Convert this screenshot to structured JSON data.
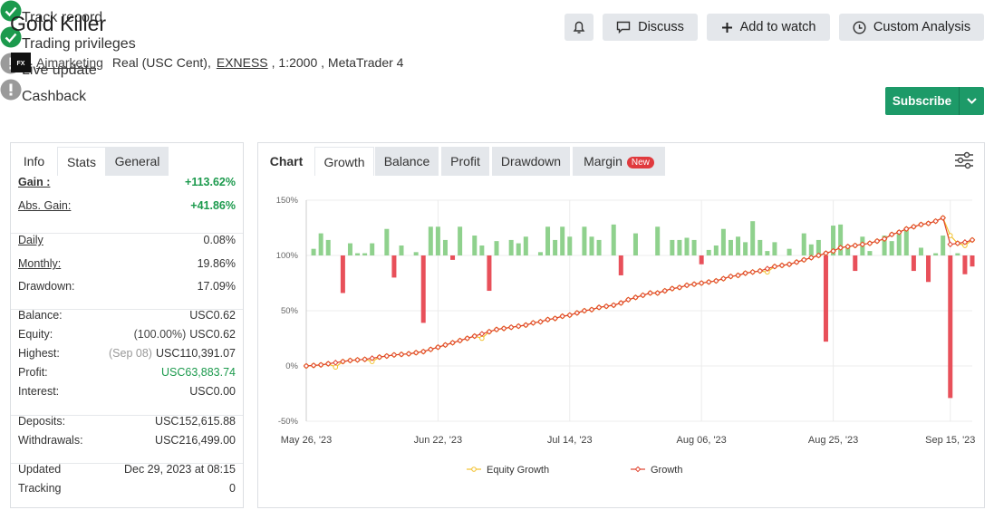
{
  "header": {
    "title": "Gold Killer",
    "buttons": [
      "Discuss",
      "Add to watch",
      "Custom Analysis"
    ],
    "account": {
      "owner": "Aimarketing",
      "type": "Real (USC Cent),",
      "broker": "EXNESS",
      "details": ", 1:2000 , MetaTrader 4"
    },
    "badges": [
      {
        "label": "Track record",
        "status": "ok"
      },
      {
        "label": "Trading privileges",
        "status": "ok"
      },
      {
        "label": "Live update",
        "status": "warn"
      },
      {
        "label": "Cashback",
        "status": "warn"
      }
    ],
    "subscribe": "Subscribe"
  },
  "stats": {
    "tabs": [
      "Info",
      "Stats",
      "General"
    ],
    "groups": [
      [
        {
          "label": "Gain :",
          "value": "+113.62%",
          "positive": true,
          "underline": true,
          "bold": true
        },
        {
          "label": "Abs. Gain:",
          "value": "+41.86%",
          "positive": true,
          "underline": true
        }
      ],
      [
        {
          "label": "Daily",
          "value": "0.08%",
          "underline": true
        },
        {
          "label": "Monthly:",
          "value": "19.86%",
          "underline": true
        },
        {
          "label": "Drawdown:",
          "value": "17.09%"
        }
      ],
      [
        {
          "label": "Balance:",
          "value": "USC0.62"
        },
        {
          "label": "Equity:",
          "note": "(100.00%)",
          "value": "USC0.62"
        },
        {
          "label": "Highest:",
          "note": "(Sep 08)",
          "value": "USC110,391.07",
          "muted_note": true
        },
        {
          "label": "Profit:",
          "value": "USC63,883.74",
          "positive": true
        },
        {
          "label": "Interest:",
          "value": "USC0.00"
        }
      ],
      [
        {
          "label": "Deposits:",
          "value": "USC152,615.88"
        },
        {
          "label": "Withdrawals:",
          "value": "USC216,499.00"
        }
      ],
      [
        {
          "label": "Updated",
          "value": "Dec 29, 2023 at 08:15"
        },
        {
          "label": "Tracking",
          "value": "0"
        }
      ]
    ]
  },
  "chart_panel": {
    "tabs": [
      "Chart",
      "Growth",
      "Balance",
      "Profit",
      "Drawdown",
      "Margin"
    ],
    "badge": "New"
  },
  "chart_data": {
    "type": "line",
    "categories": [
      "May 26, '23",
      null,
      null,
      null,
      null,
      null,
      null,
      null,
      null,
      null,
      null,
      null,
      null,
      null,
      null,
      null,
      null,
      null,
      "Jun 22, '23",
      null,
      null,
      null,
      null,
      null,
      null,
      null,
      null,
      null,
      null,
      null,
      null,
      null,
      null,
      null,
      null,
      null,
      "Jul 14, '23",
      null,
      null,
      null,
      null,
      null,
      null,
      null,
      null,
      null,
      null,
      null,
      null,
      null,
      null,
      null,
      null,
      null,
      "Aug 06, '23",
      null,
      null,
      null,
      null,
      null,
      null,
      null,
      null,
      null,
      null,
      null,
      null,
      null,
      null,
      null,
      null,
      null,
      "Aug 25, '23",
      null,
      null,
      null,
      null,
      null,
      null,
      null,
      null,
      null,
      null,
      null,
      null,
      null,
      null,
      null,
      "Sep 15, '23",
      null,
      null,
      null
    ],
    "ylim": [
      -50,
      150
    ],
    "yticks": [
      {
        "value": -50,
        "label": "-50%"
      },
      {
        "value": 0,
        "label": "0%"
      },
      {
        "value": 50,
        "label": "50%"
      },
      {
        "value": 100,
        "label": "100%"
      },
      {
        "value": 150,
        "label": "150%"
      }
    ],
    "y2lim": [
      -150,
      50
    ],
    "grid": true,
    "legend": "bottom",
    "series": [
      {
        "type": "bar",
        "axis": "y2",
        "color": "#8fd18d",
        "negative_color": "#e8505a",
        "values": [
          0,
          6,
          20,
          14,
          0,
          -34,
          11,
          2,
          2,
          11,
          0,
          24,
          -20,
          9,
          0,
          3,
          -61,
          26,
          26,
          14,
          -4,
          26,
          0,
          18,
          9,
          -32,
          13,
          0,
          14,
          11,
          17,
          0,
          3,
          26,
          14,
          26,
          17,
          0,
          26,
          17,
          14,
          0,
          28,
          -18,
          0,
          20,
          0,
          0,
          26,
          0,
          14,
          14,
          16,
          14,
          -8,
          5,
          9,
          24,
          14,
          17,
          12,
          31,
          14,
          4,
          12,
          0,
          6,
          0,
          20,
          10,
          14,
          -78,
          27,
          28,
          8,
          -14,
          17,
          4,
          0,
          18,
          13,
          20,
          25,
          -14,
          7,
          -24,
          2,
          18,
          -129,
          2,
          -17,
          -10
        ]
      },
      {
        "type": "line",
        "name": "Equity Growth",
        "color": "#f2c12e",
        "marker": "circle",
        "values": [
          0,
          0.5,
          1,
          2,
          -1,
          4,
          5,
          5.5,
          6,
          4,
          8,
          9,
          10,
          10.5,
          11,
          12,
          13,
          15,
          17,
          19,
          21,
          23,
          25,
          27,
          25,
          31,
          33,
          34,
          35,
          36,
          37,
          39,
          40,
          42,
          43,
          45,
          46,
          48,
          50,
          51,
          53,
          54,
          55,
          57,
          60,
          62,
          64,
          66,
          66,
          68,
          70,
          71,
          73,
          74,
          75,
          76,
          77,
          79,
          81,
          82,
          84,
          85,
          86,
          85,
          90,
          91,
          92,
          94,
          96,
          98,
          100,
          102,
          104,
          107,
          108,
          109,
          110,
          111,
          113,
          115,
          119,
          121,
          124,
          126,
          128,
          129,
          131,
          134,
          118,
          111,
          109,
          114
        ]
      },
      {
        "type": "line",
        "name": "Growth",
        "color": "#e0442f",
        "marker": "diamond",
        "values": [
          0,
          0.5,
          1,
          2,
          3,
          4,
          5,
          5.5,
          6,
          7,
          8,
          9,
          10,
          10.5,
          11,
          12,
          13,
          15,
          17,
          19,
          21,
          23,
          25,
          27,
          29,
          31,
          33,
          34,
          35,
          36,
          37,
          39,
          40,
          42,
          43,
          45,
          46,
          48,
          50,
          51,
          53,
          54,
          55,
          57,
          60,
          62,
          64,
          66,
          66,
          68,
          70,
          71,
          73,
          74,
          75,
          76,
          77,
          79,
          81,
          82,
          84,
          85,
          86,
          88,
          90,
          91,
          92,
          94,
          96,
          98,
          100,
          102,
          104,
          107,
          108,
          109,
          110,
          111,
          113,
          115,
          119,
          121,
          124,
          126,
          128,
          129,
          131,
          134,
          110,
          111,
          112,
          114
        ]
      }
    ]
  }
}
